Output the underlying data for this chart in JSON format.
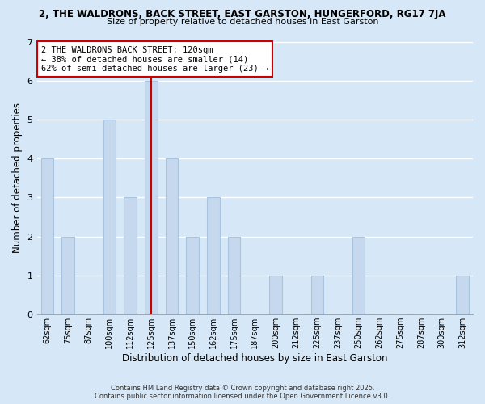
{
  "title_line1": "2, THE WALDRONS, BACK STREET, EAST GARSTON, HUNGERFORD, RG17 7JA",
  "title_line2": "Size of property relative to detached houses in East Garston",
  "xlabel": "Distribution of detached houses by size in East Garston",
  "ylabel": "Number of detached properties",
  "categories": [
    "62sqm",
    "75sqm",
    "87sqm",
    "100sqm",
    "112sqm",
    "125sqm",
    "137sqm",
    "150sqm",
    "162sqm",
    "175sqm",
    "187sqm",
    "200sqm",
    "212sqm",
    "225sqm",
    "237sqm",
    "250sqm",
    "262sqm",
    "275sqm",
    "287sqm",
    "300sqm",
    "312sqm"
  ],
  "bar_heights": [
    4,
    2,
    0,
    5,
    3,
    6,
    4,
    2,
    3,
    2,
    0,
    1,
    0,
    1,
    0,
    2,
    0,
    0,
    0,
    0,
    1
  ],
  "bar_color": "#c5d8ed",
  "bar_edge_color": "#a8c4de",
  "property_bin_index": 5,
  "property_line_color": "#cc0000",
  "annotation_line1": "2 THE WALDRONS BACK STREET: 120sqm",
  "annotation_line2": "← 38% of detached houses are smaller (14)",
  "annotation_line3": "62% of semi-detached houses are larger (23) →",
  "annotation_box_color": "#cc0000",
  "ylim": [
    0,
    7
  ],
  "yticks": [
    0,
    1,
    2,
    3,
    4,
    5,
    6,
    7
  ],
  "background_color": "#d6e8f7",
  "grid_color": "#ffffff",
  "footer_line1": "Contains HM Land Registry data © Crown copyright and database right 2025.",
  "footer_line2": "Contains public sector information licensed under the Open Government Licence v3.0."
}
